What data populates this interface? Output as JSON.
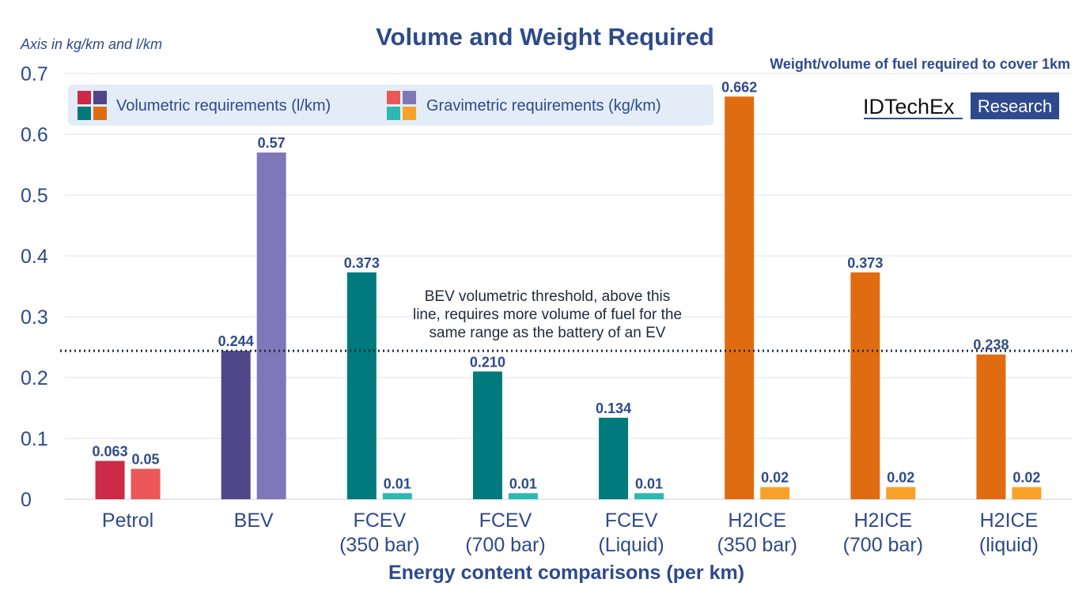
{
  "chart_data": {
    "type": "bar",
    "title": "Volume and Weight Required",
    "subtitle": "Weight/volume of fuel required to cover 1km",
    "axis_note": "Axis in kg/km and l/km",
    "xlabel": "Energy content comparisons (per km)",
    "ylabel": "",
    "ylim": [
      0,
      0.7
    ],
    "yticks": [
      "0",
      "0.1",
      "0.2",
      "0.3",
      "0.4",
      "0.5",
      "0.6",
      "0.7"
    ],
    "grid": true,
    "legend_position": "top-left",
    "categories": [
      [
        "Petrol"
      ],
      [
        "BEV"
      ],
      [
        "FCEV",
        "(350 bar)"
      ],
      [
        "FCEV",
        "(700 bar)"
      ],
      [
        "FCEV",
        "(Liquid)"
      ],
      [
        "H2ICE",
        "(350 bar)"
      ],
      [
        "H2ICE",
        "(700 bar)"
      ],
      [
        "H2ICE",
        "(liquid)"
      ]
    ],
    "series": [
      {
        "name": "Volumetric requirements (l/km)",
        "values": [
          0.063,
          0.244,
          0.373,
          0.21,
          0.134,
          0.662,
          0.373,
          0.238
        ],
        "labels": [
          "0.063",
          "0.244",
          "0.373",
          "0.210",
          "0.134",
          "0.662",
          "0.373",
          "0.238"
        ],
        "colors": [
          "#cc2a47",
          "#4f4787",
          "#007a7c",
          "#007a7c",
          "#007a7c",
          "#e06c12",
          "#e06c12",
          "#e06c12"
        ],
        "legend_swatch": [
          "#cc2a47",
          "#4f4787",
          "#007a7c",
          "#e06c12"
        ]
      },
      {
        "name": "Gravimetric requirements (kg/km)",
        "values": [
          0.05,
          0.57,
          0.01,
          0.01,
          0.01,
          0.02,
          0.02,
          0.02
        ],
        "labels": [
          "0.05",
          "0.57",
          "0.01",
          "0.01",
          "0.01",
          "0.02",
          "0.02",
          "0.02"
        ],
        "colors": [
          "#ec5757",
          "#8077b8",
          "#2bb9b4",
          "#2bb9b4",
          "#2bb9b4",
          "#f7a12a",
          "#f7a12a",
          "#f7a12a"
        ],
        "legend_swatch": [
          "#ec5757",
          "#8077b8",
          "#2bb9b4",
          "#f7a12a"
        ]
      }
    ],
    "threshold": {
      "value": 0.244,
      "annotation": [
        "BEV volumetric threshold, above this",
        "line, requires more volume of fuel for the",
        "same range as the battery of an EV"
      ]
    }
  },
  "logo": {
    "left": "IDTechEx",
    "right": "Research",
    "color": "#2e4a8c"
  },
  "colors": {
    "text": "#2e4a8c",
    "grid": "#dde3ea",
    "legend_bg": "#e3ecf7"
  }
}
